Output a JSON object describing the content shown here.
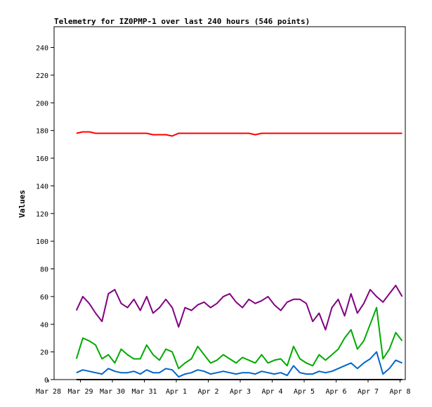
{
  "chart_data": {
    "type": "line",
    "title": "Telemetry for IZ0PMP-1 over last 240 hours (546 points)",
    "xlabel": "",
    "ylabel": "Values",
    "x_tick_labels": [
      "Mar 28",
      "Mar 29",
      "Mar 30",
      "Mar 31",
      "Apr 1",
      "Apr 2",
      "Apr 3",
      "Apr 4",
      "Apr 5",
      "Apr 6",
      "Apr 7",
      "Apr 8"
    ],
    "y_ticks": [
      0,
      20,
      40,
      60,
      80,
      100,
      120,
      140,
      160,
      180,
      200,
      220,
      240
    ],
    "xlim": [
      0,
      11
    ],
    "ylim": [
      0,
      255
    ],
    "grid": false,
    "x": [
      0.7,
      0.9,
      1.1,
      1.3,
      1.5,
      1.7,
      1.9,
      2.1,
      2.3,
      2.5,
      2.7,
      2.9,
      3.1,
      3.3,
      3.5,
      3.7,
      3.9,
      4.1,
      4.3,
      4.5,
      4.7,
      4.9,
      5.1,
      5.3,
      5.5,
      5.7,
      5.9,
      6.1,
      6.3,
      6.5,
      6.7,
      6.9,
      7.1,
      7.3,
      7.5,
      7.7,
      7.9,
      8.1,
      8.3,
      8.5,
      8.7,
      8.9,
      9.1,
      9.3,
      9.5,
      9.7,
      9.9,
      10.1,
      10.3,
      10.5,
      10.7,
      10.9
    ],
    "series": [
      {
        "color": "#ff0000",
        "values": [
          178,
          179,
          179,
          178,
          178,
          178,
          178,
          178,
          178,
          178,
          178,
          178,
          177,
          177,
          177,
          176,
          178,
          178,
          178,
          178,
          178,
          178,
          178,
          178,
          178,
          178,
          178,
          178,
          177,
          178,
          178,
          178,
          178,
          178,
          178,
          178,
          178,
          178,
          178,
          178,
          178,
          178,
          178,
          178,
          178,
          178,
          178,
          178,
          178,
          178,
          178,
          178
        ]
      },
      {
        "color": "#800080",
        "values": [
          50,
          60,
          55,
          48,
          42,
          62,
          65,
          55,
          52,
          58,
          50,
          60,
          48,
          52,
          58,
          52,
          38,
          52,
          50,
          54,
          56,
          52,
          55,
          60,
          62,
          56,
          52,
          58,
          55,
          57,
          60,
          54,
          50,
          56,
          58,
          58,
          55,
          42,
          48,
          36,
          52,
          58,
          46,
          62,
          48,
          55,
          65,
          60,
          56,
          62,
          68,
          60
        ]
      },
      {
        "color": "#00aa00",
        "values": [
          15,
          30,
          28,
          25,
          15,
          18,
          12,
          22,
          18,
          15,
          15,
          25,
          18,
          14,
          22,
          20,
          8,
          12,
          15,
          24,
          18,
          12,
          14,
          18,
          15,
          12,
          16,
          14,
          12,
          18,
          12,
          14,
          15,
          10,
          24,
          15,
          12,
          10,
          18,
          14,
          18,
          22,
          30,
          36,
          22,
          28,
          40,
          52,
          15,
          22,
          34,
          28
        ]
      },
      {
        "color": "#0066cc",
        "values": [
          5,
          7,
          6,
          5,
          4,
          8,
          6,
          5,
          5,
          6,
          4,
          7,
          5,
          5,
          8,
          7,
          2,
          4,
          5,
          7,
          6,
          4,
          5,
          6,
          5,
          4,
          5,
          5,
          4,
          6,
          5,
          4,
          5,
          3,
          10,
          5,
          4,
          4,
          6,
          5,
          6,
          8,
          10,
          12,
          8,
          12,
          15,
          20,
          4,
          8,
          14,
          12
        ]
      }
    ]
  }
}
